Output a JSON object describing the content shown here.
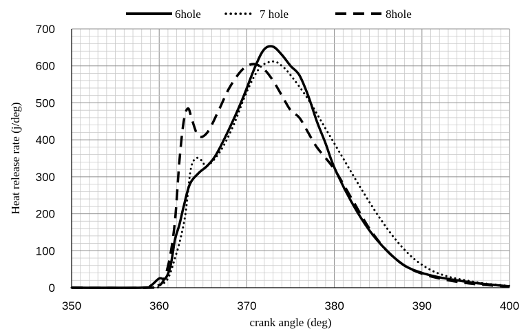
{
  "chart_data": {
    "type": "line",
    "title": "",
    "xlabel": "crank angle (deg)",
    "ylabel": "Heat release rate (j/deg)",
    "xlim": [
      350,
      400
    ],
    "ylim": [
      0,
      700
    ],
    "x_ticks": [
      350,
      360,
      370,
      380,
      390,
      400
    ],
    "y_ticks": [
      0,
      100,
      200,
      300,
      400,
      500,
      600,
      700
    ],
    "grid": true,
    "minor_grid": true,
    "legend_position": "top",
    "series": [
      {
        "name": "6hole",
        "style": "solid",
        "color": "#000000",
        "points": [
          [
            350,
            0
          ],
          [
            358,
            0
          ],
          [
            359,
            5
          ],
          [
            360,
            25
          ],
          [
            360.7,
            25
          ],
          [
            361.3,
            60
          ],
          [
            361.8,
            130
          ],
          [
            362.3,
            170
          ],
          [
            362.8,
            220
          ],
          [
            363.5,
            280
          ],
          [
            364.5,
            310
          ],
          [
            365.5,
            330
          ],
          [
            366.5,
            360
          ],
          [
            368,
            430
          ],
          [
            369.5,
            510
          ],
          [
            371,
            600
          ],
          [
            372,
            645
          ],
          [
            373,
            652
          ],
          [
            374,
            630
          ],
          [
            375,
            600
          ],
          [
            376,
            575
          ],
          [
            377,
            520
          ],
          [
            378,
            450
          ],
          [
            379,
            390
          ],
          [
            380,
            325
          ],
          [
            382,
            230
          ],
          [
            384,
            155
          ],
          [
            386,
            100
          ],
          [
            388,
            60
          ],
          [
            390,
            40
          ],
          [
            392,
            28
          ],
          [
            394,
            20
          ],
          [
            396,
            13
          ],
          [
            398,
            8
          ],
          [
            400,
            4
          ]
        ]
      },
      {
        "name": "7 hole",
        "style": "dotted",
        "color": "#000000",
        "points": [
          [
            350,
            0
          ],
          [
            359,
            0
          ],
          [
            360,
            5
          ],
          [
            361,
            25
          ],
          [
            361.8,
            80
          ],
          [
            362.4,
            130
          ],
          [
            363,
            200
          ],
          [
            363.6,
            320
          ],
          [
            364.2,
            350
          ],
          [
            364.8,
            345
          ],
          [
            365.5,
            330
          ],
          [
            367,
            370
          ],
          [
            368.5,
            440
          ],
          [
            370,
            530
          ],
          [
            371.5,
            595
          ],
          [
            373,
            612
          ],
          [
            374,
            600
          ],
          [
            375,
            575
          ],
          [
            377,
            510
          ],
          [
            379,
            430
          ],
          [
            381,
            350
          ],
          [
            383,
            270
          ],
          [
            385,
            195
          ],
          [
            387,
            130
          ],
          [
            389,
            80
          ],
          [
            391,
            48
          ],
          [
            393,
            30
          ],
          [
            395,
            20
          ],
          [
            397,
            12
          ],
          [
            399,
            7
          ],
          [
            400,
            5
          ]
        ]
      },
      {
        "name": "8hole",
        "style": "dashed",
        "color": "#000000",
        "points": [
          [
            350,
            0
          ],
          [
            359,
            0
          ],
          [
            359.8,
            5
          ],
          [
            360.5,
            20
          ],
          [
            361.2,
            80
          ],
          [
            361.8,
            180
          ],
          [
            362.3,
            340
          ],
          [
            362.8,
            450
          ],
          [
            363.3,
            485
          ],
          [
            363.8,
            450
          ],
          [
            364.5,
            410
          ],
          [
            365.5,
            420
          ],
          [
            366.8,
            480
          ],
          [
            368,
            540
          ],
          [
            369.5,
            590
          ],
          [
            370.8,
            605
          ],
          [
            372,
            590
          ],
          [
            373,
            560
          ],
          [
            374,
            520
          ],
          [
            375,
            480
          ],
          [
            376,
            460
          ],
          [
            377,
            420
          ],
          [
            378,
            380
          ],
          [
            380,
            320
          ],
          [
            382,
            240
          ],
          [
            384,
            160
          ],
          [
            386,
            100
          ],
          [
            388,
            60
          ],
          [
            390,
            38
          ],
          [
            392,
            25
          ],
          [
            394,
            16
          ],
          [
            396,
            10
          ],
          [
            398,
            6
          ],
          [
            400,
            3
          ]
        ]
      }
    ]
  }
}
